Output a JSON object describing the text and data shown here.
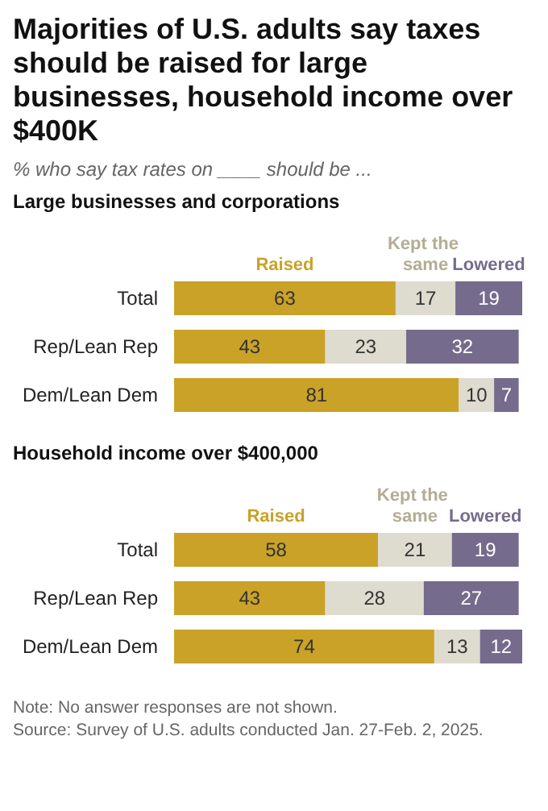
{
  "chart_data": [
    {
      "type": "bar",
      "orientation": "horizontal",
      "stacked": true,
      "data_labels": true,
      "legend": "top",
      "title": "Majorities of U.S. adults say taxes should be raised for large businesses, household income over $400K",
      "subtitle": "% who say tax rates on ____ should be ...",
      "annotations": [
        "Large businesses and corporations"
      ],
      "categories": [
        "Total",
        "Rep/Lean Rep",
        "Dem/Lean Dem"
      ],
      "series": [
        {
          "name": "Raised",
          "color": "#c9a227",
          "values": [
            63,
            43,
            81
          ]
        },
        {
          "name": "Kept the same",
          "color": "#dedbcf",
          "values": [
            17,
            23,
            10
          ]
        },
        {
          "name": "Lowered",
          "color": "#756b8c",
          "values": [
            19,
            32,
            7
          ]
        }
      ]
    },
    {
      "type": "bar",
      "orientation": "horizontal",
      "stacked": true,
      "data_labels": true,
      "legend": "top",
      "title": "Household income over $400,000",
      "annotations": [
        "Note: No answer responses are not shown.",
        "Source: Survey of U.S. adults conducted Jan. 27-Feb. 2, 2025."
      ],
      "categories": [
        "Total",
        "Rep/Lean Rep",
        "Dem/Lean Dem"
      ],
      "series": [
        {
          "name": "Raised",
          "color": "#c9a227",
          "values": [
            58,
            43,
            74
          ]
        },
        {
          "name": "Kept the same",
          "color": "#dedbcf",
          "values": [
            21,
            28,
            13
          ]
        },
        {
          "name": "Lowered",
          "color": "#756b8c",
          "values": [
            19,
            27,
            12
          ]
        }
      ]
    }
  ]
}
